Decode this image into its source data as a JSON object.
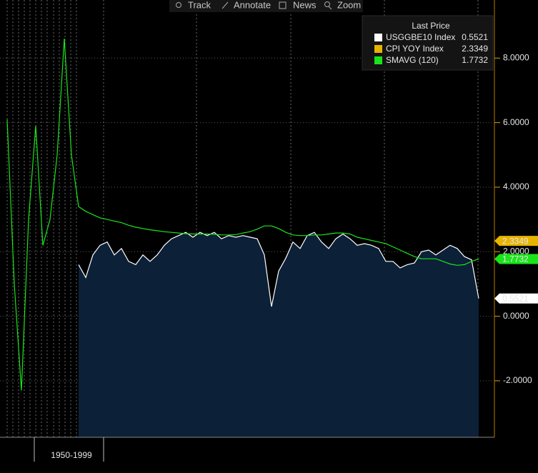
{
  "toolbar": [
    "Track",
    "Annotate",
    "News",
    "Zoom"
  ],
  "chart_data": {
    "type": "line",
    "legend_title": "Last Price",
    "legend": "top-right",
    "grid": true,
    "categories": [
      null,
      null,
      null,
      null,
      null,
      null,
      null,
      null,
      null,
      "1950-1999",
      null,
      null,
      null,
      null,
      null,
      null,
      null,
      null,
      null,
      null,
      null,
      null,
      null,
      null,
      null,
      null,
      null,
      null,
      null,
      null,
      null,
      null,
      null,
      null,
      null,
      null,
      null,
      null,
      null,
      null,
      null,
      null,
      null,
      null,
      null,
      null,
      null,
      null,
      null,
      null,
      null,
      null,
      null,
      null,
      null,
      null,
      null,
      null,
      null,
      null,
      null,
      null,
      null,
      null,
      null,
      null,
      null
    ],
    "ylim": [
      -3.75,
      9.8
    ],
    "yticks": [
      {
        "value": -2,
        "label": "-2.0000"
      },
      {
        "value": 0,
        "label": "0.0000"
      },
      {
        "value": 2,
        "label": "2.0000"
      },
      {
        "value": 4,
        "label": "4.0000"
      },
      {
        "value": 6,
        "label": "6.0000"
      },
      {
        "value": 8,
        "label": "8.0000"
      }
    ],
    "series": [
      {
        "name": "USGGBE10 Index",
        "color": "#ffffff",
        "area_color": "#0c2038",
        "values": [
          null,
          null,
          null,
          null,
          null,
          null,
          null,
          null,
          null,
          null,
          1.6,
          1.2,
          1.9,
          2.2,
          2.3,
          1.9,
          2.1,
          1.7,
          1.6,
          1.9,
          1.7,
          1.9,
          2.2,
          2.4,
          2.5,
          2.6,
          2.45,
          2.6,
          2.5,
          2.6,
          2.4,
          2.5,
          2.45,
          2.5,
          2.45,
          2.4,
          1.9,
          0.3,
          1.4,
          1.8,
          2.3,
          2.1,
          2.5,
          2.6,
          2.3,
          2.1,
          2.4,
          2.55,
          2.4,
          2.2,
          2.25,
          2.2,
          2.1,
          1.7,
          1.7,
          1.5,
          1.6,
          1.65,
          2.0,
          2.05,
          1.9,
          2.05,
          2.2,
          2.1,
          1.85,
          1.75,
          0.5521
        ]
      },
      {
        "name": "CPI YOY Index",
        "color": "#e8b400",
        "values": [
          null,
          null,
          null,
          null,
          null,
          null,
          null,
          null,
          null,
          null,
          null,
          null,
          null,
          null,
          null,
          null,
          null,
          null,
          null,
          null,
          null,
          null,
          null,
          null,
          null,
          null,
          null,
          null,
          null,
          null,
          null,
          null,
          null,
          null,
          null,
          null,
          null,
          null,
          null,
          null,
          null,
          null,
          null,
          null,
          null,
          null,
          null,
          null,
          null,
          null,
          null,
          null,
          null,
          null,
          null,
          null,
          null,
          null,
          null,
          null,
          null,
          null,
          null,
          null,
          null,
          null,
          2.3349
        ]
      },
      {
        "name": "SMAVG (120)",
        "color": "#19e619",
        "values": [
          6.1,
          1.0,
          -2.3,
          3.0,
          5.9,
          2.2,
          3.0,
          5.0,
          8.6,
          5.0,
          3.4,
          3.25,
          3.15,
          3.05,
          3.0,
          2.95,
          2.9,
          2.82,
          2.76,
          2.72,
          2.68,
          2.65,
          2.62,
          2.6,
          2.58,
          2.56,
          2.55,
          2.55,
          2.55,
          2.54,
          2.52,
          2.52,
          2.53,
          2.58,
          2.62,
          2.7,
          2.8,
          2.8,
          2.72,
          2.6,
          2.52,
          2.5,
          2.5,
          2.52,
          2.52,
          2.55,
          2.58,
          2.58,
          2.55,
          2.45,
          2.4,
          2.35,
          2.3,
          2.25,
          2.15,
          2.05,
          1.95,
          1.85,
          1.78,
          1.78,
          1.78,
          1.7,
          1.62,
          1.58,
          1.6,
          1.7,
          1.7732
        ]
      }
    ]
  }
}
